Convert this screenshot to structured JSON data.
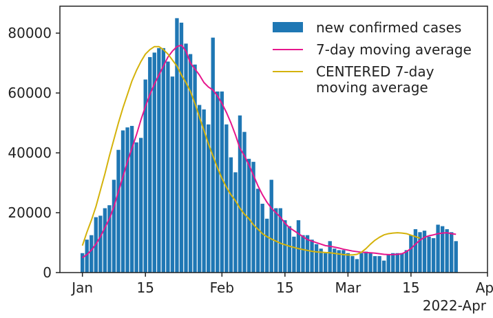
{
  "chart_data": {
    "type": "bar",
    "x_start": "2022-01-01",
    "xlim": [
      "2021-12-27",
      "2022-04-01"
    ],
    "ylim": [
      0,
      89000
    ],
    "x_ticks": [
      {
        "date": "2022-01-01",
        "label": "Jan"
      },
      {
        "date": "2022-01-15",
        "label": "15"
      },
      {
        "date": "2022-02-01",
        "label": "Feb"
      },
      {
        "date": "2022-02-15",
        "label": "15"
      },
      {
        "date": "2022-03-01",
        "label": "Mar"
      },
      {
        "date": "2022-03-15",
        "label": "15"
      },
      {
        "date": "2022-04-01",
        "label": "Apr"
      }
    ],
    "x_offset_label": "2022-Apr",
    "y_ticks": [
      {
        "value": 0,
        "label": "0"
      },
      {
        "value": 20000,
        "label": "20000"
      },
      {
        "value": 40000,
        "label": "40000"
      },
      {
        "value": 60000,
        "label": "60000"
      },
      {
        "value": 80000,
        "label": "80000"
      }
    ],
    "grid": false,
    "legend_position": "top-right",
    "series": [
      {
        "name": "new confirmed cases",
        "kind": "bar",
        "color": "#1f77b4",
        "values": [
          6500,
          11000,
          12500,
          18500,
          19000,
          21500,
          22500,
          31000,
          41000,
          47500,
          48500,
          49000,
          43500,
          45000,
          64500,
          72000,
          73500,
          75000,
          75000,
          70500,
          65500,
          85000,
          83500,
          76500,
          73000,
          69500,
          56000,
          54500,
          49500,
          78500,
          60500,
          60500,
          49500,
          38500,
          33500,
          52500,
          47000,
          38000,
          37000,
          28000,
          23000,
          18000,
          31000,
          21500,
          21500,
          17500,
          15500,
          12000,
          17500,
          12500,
          12500,
          11000,
          9500,
          8000,
          6500,
          10500,
          8000,
          7500,
          7500,
          6500,
          5500,
          4500,
          6500,
          7000,
          6500,
          5500,
          5500,
          4000,
          6000,
          6500,
          6500,
          6500,
          7500,
          12500,
          14500,
          13500,
          14000,
          12000,
          11500,
          16000,
          15500,
          14500,
          13500,
          10500
        ]
      },
      {
        "name": "7-day moving average",
        "kind": "line",
        "color": "#e6168c",
        "values": [
          5000,
          6000,
          7500,
          9500,
          12000,
          15000,
          18000,
          22000,
          27000,
          32000,
          37000,
          41500,
          46000,
          51000,
          55500,
          59500,
          63000,
          66000,
          69000,
          72000,
          74000,
          75500,
          76000,
          74000,
          70000,
          68000,
          66000,
          63500,
          62000,
          61000,
          59000,
          56500,
          53500,
          50000,
          46000,
          41500,
          39000,
          36000,
          32500,
          29000,
          26000,
          23500,
          21500,
          20000,
          18500,
          16500,
          15000,
          14000,
          13000,
          12000,
          11000,
          10500,
          10000,
          9500,
          9000,
          8800,
          8500,
          8200,
          7800,
          7500,
          7200,
          7000,
          6800,
          6700,
          6600,
          6500,
          6300,
          6100,
          6000,
          6000,
          6100,
          6300,
          7000,
          8000,
          9500,
          10800,
          11800,
          12300,
          12600,
          13000,
          13200,
          13300,
          13000,
          12800
        ]
      },
      {
        "name": "CENTERED 7-day\nmoving average",
        "kind": "line",
        "color": "#d4b20a",
        "values": [
          9000,
          13500,
          17500,
          22000,
          27500,
          33000,
          39000,
          44500,
          50000,
          55000,
          59500,
          64000,
          67500,
          70500,
          73000,
          74500,
          75500,
          75500,
          74500,
          73000,
          71000,
          69000,
          66000,
          63500,
          60500,
          56500,
          52000,
          47500,
          43000,
          39000,
          35000,
          31500,
          28500,
          26000,
          24000,
          21500,
          19500,
          18000,
          16000,
          14500,
          13000,
          12000,
          11200,
          10500,
          9800,
          9300,
          8800,
          8400,
          8000,
          7700,
          7400,
          7100,
          6900,
          6800,
          6700,
          6600,
          6400,
          6200,
          6000,
          5900,
          5900,
          6100,
          6800,
          8000,
          9500,
          10800,
          11800,
          12600,
          13000,
          13200,
          13300,
          13200,
          13000,
          12500,
          12000,
          11500
        ]
      }
    ]
  }
}
